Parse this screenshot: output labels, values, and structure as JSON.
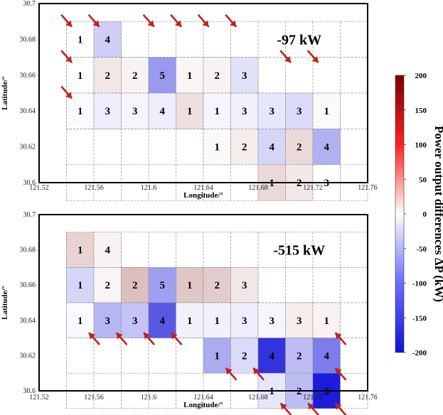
{
  "chart_data": {
    "type": "heatmap",
    "colorbar": {
      "label": "Power output differences ΔP (kW)",
      "range": [
        -200,
        200
      ],
      "ticks": [
        200,
        150,
        100,
        50,
        0,
        -50,
        -100,
        -150,
        -200
      ],
      "colors": {
        "neg": "#1010d8",
        "mid": "#ffffff",
        "pos": "#7a0000"
      }
    },
    "arrow_color": "#c0221d",
    "panels": [
      {
        "annotation": "-97 kW",
        "xlabel": "Longitude/°",
        "ylabel": "Latitude/°",
        "xlim": [
          121.52,
          121.76
        ],
        "ylim": [
          30.6,
          30.7
        ],
        "xticks": [
          "121.52",
          "121.56",
          "121.6",
          "121.64",
          "121.68",
          "121.72",
          "121.76"
        ],
        "yticks": [
          "30.7",
          "30.68",
          "30.66",
          "30.64",
          "30.62",
          "30.6"
        ],
        "cells": [
          {
            "lon": 121.55,
            "lat": 30.68,
            "label": "1",
            "dp": 0
          },
          {
            "lon": 121.57,
            "lat": 30.68,
            "label": "4",
            "dp": -40
          },
          {
            "lon": 121.55,
            "lat": 30.66,
            "label": "1",
            "dp": 0
          },
          {
            "lon": 121.57,
            "lat": 30.66,
            "label": "2",
            "dp": 20
          },
          {
            "lon": 121.59,
            "lat": 30.66,
            "label": "2",
            "dp": 10
          },
          {
            "lon": 121.61,
            "lat": 30.66,
            "label": "5",
            "dp": -85
          },
          {
            "lon": 121.63,
            "lat": 30.66,
            "label": "1",
            "dp": 8
          },
          {
            "lon": 121.65,
            "lat": 30.66,
            "label": "2",
            "dp": 10
          },
          {
            "lon": 121.67,
            "lat": 30.66,
            "label": "3",
            "dp": -25
          },
          {
            "lon": 121.55,
            "lat": 30.64,
            "label": "1",
            "dp": -3
          },
          {
            "lon": 121.57,
            "lat": 30.64,
            "label": "3",
            "dp": -15
          },
          {
            "lon": 121.59,
            "lat": 30.64,
            "label": "3",
            "dp": -8
          },
          {
            "lon": 121.61,
            "lat": 30.64,
            "label": "4",
            "dp": -15
          },
          {
            "lon": 121.63,
            "lat": 30.64,
            "label": "1",
            "dp": 25
          },
          {
            "lon": 121.65,
            "lat": 30.64,
            "label": "1",
            "dp": -8
          },
          {
            "lon": 121.67,
            "lat": 30.64,
            "label": "3",
            "dp": -12
          },
          {
            "lon": 121.69,
            "lat": 30.64,
            "label": "3",
            "dp": -20
          },
          {
            "lon": 121.71,
            "lat": 30.64,
            "label": "3",
            "dp": -30
          },
          {
            "lon": 121.73,
            "lat": 30.64,
            "label": "1",
            "dp": 5
          },
          {
            "lon": 121.65,
            "lat": 30.62,
            "label": "1",
            "dp": 5
          },
          {
            "lon": 121.67,
            "lat": 30.62,
            "label": "2",
            "dp": 15
          },
          {
            "lon": 121.69,
            "lat": 30.62,
            "label": "4",
            "dp": -35
          },
          {
            "lon": 121.71,
            "lat": 30.62,
            "label": "2",
            "dp": 30
          },
          {
            "lon": 121.73,
            "lat": 30.62,
            "label": "4",
            "dp": -65
          },
          {
            "lon": 121.69,
            "lat": 30.6,
            "label": "1",
            "dp": 30
          },
          {
            "lon": 121.71,
            "lat": 30.6,
            "label": "2",
            "dp": 18
          },
          {
            "lon": 121.73,
            "lat": 30.6,
            "label": "3",
            "dp": 0
          }
        ],
        "arrows_to": [
          {
            "lon": 121.55,
            "lat": 30.68
          },
          {
            "lon": 121.57,
            "lat": 30.68
          },
          {
            "lon": 121.55,
            "lat": 30.66
          },
          {
            "lon": 121.55,
            "lat": 30.64
          },
          {
            "lon": 121.61,
            "lat": 30.68
          },
          {
            "lon": 121.63,
            "lat": 30.68
          },
          {
            "lon": 121.65,
            "lat": 30.68
          },
          {
            "lon": 121.67,
            "lat": 30.68
          },
          {
            "lon": 121.71,
            "lat": 30.66
          },
          {
            "lon": 121.73,
            "lat": 30.66
          }
        ]
      },
      {
        "annotation": "-515 kW",
        "xlabel": "Longitude/°",
        "ylabel": "Latitude/°",
        "xlim": [
          121.52,
          121.76
        ],
        "ylim": [
          30.6,
          30.7
        ],
        "xticks": [
          "121.52",
          "121.56",
          "121.6",
          "121.64",
          "121.68",
          "121.72",
          "121.76"
        ],
        "yticks": [
          "30.7",
          "30.68",
          "30.66",
          "30.64",
          "30.62",
          "30.6"
        ],
        "cells": [
          {
            "lon": 121.55,
            "lat": 30.68,
            "label": "1",
            "dp": 35
          },
          {
            "lon": 121.57,
            "lat": 30.68,
            "label": "4",
            "dp": 10
          },
          {
            "lon": 121.55,
            "lat": 30.66,
            "label": "1",
            "dp": -35
          },
          {
            "lon": 121.57,
            "lat": 30.66,
            "label": "2",
            "dp": 8
          },
          {
            "lon": 121.59,
            "lat": 30.66,
            "label": "2",
            "dp": 50
          },
          {
            "lon": 121.61,
            "lat": 30.66,
            "label": "5",
            "dp": -80
          },
          {
            "lon": 121.63,
            "lat": 30.66,
            "label": "1",
            "dp": 45
          },
          {
            "lon": 121.65,
            "lat": 30.66,
            "label": "2",
            "dp": 40
          },
          {
            "lon": 121.67,
            "lat": 30.66,
            "label": "3",
            "dp": 20
          },
          {
            "lon": 121.55,
            "lat": 30.64,
            "label": "1",
            "dp": -5
          },
          {
            "lon": 121.57,
            "lat": 30.64,
            "label": "3",
            "dp": -60
          },
          {
            "lon": 121.59,
            "lat": 30.64,
            "label": "3",
            "dp": -50
          },
          {
            "lon": 121.61,
            "lat": 30.64,
            "label": "4",
            "dp": -140
          },
          {
            "lon": 121.63,
            "lat": 30.64,
            "label": "1",
            "dp": -12
          },
          {
            "lon": 121.65,
            "lat": 30.64,
            "label": "1",
            "dp": -12
          },
          {
            "lon": 121.67,
            "lat": 30.64,
            "label": "3",
            "dp": -15
          },
          {
            "lon": 121.69,
            "lat": 30.64,
            "label": "3",
            "dp": -8
          },
          {
            "lon": 121.71,
            "lat": 30.64,
            "label": "3",
            "dp": 15
          },
          {
            "lon": 121.73,
            "lat": 30.64,
            "label": "1",
            "dp": 10
          },
          {
            "lon": 121.65,
            "lat": 30.62,
            "label": "1",
            "dp": -70
          },
          {
            "lon": 121.67,
            "lat": 30.62,
            "label": "2",
            "dp": -30
          },
          {
            "lon": 121.69,
            "lat": 30.62,
            "label": "4",
            "dp": -170
          },
          {
            "lon": 121.71,
            "lat": 30.62,
            "label": "2",
            "dp": -55
          },
          {
            "lon": 121.73,
            "lat": 30.62,
            "label": "4",
            "dp": -110
          },
          {
            "lon": 121.69,
            "lat": 30.6,
            "label": "1",
            "dp": -20
          },
          {
            "lon": 121.71,
            "lat": 30.6,
            "label": "2",
            "dp": -55
          },
          {
            "lon": 121.73,
            "lat": 30.6,
            "label": "3",
            "dp": -190
          }
        ],
        "arrows_to": [
          {
            "lon": 121.55,
            "lat": 30.64
          },
          {
            "lon": 121.57,
            "lat": 30.64
          },
          {
            "lon": 121.59,
            "lat": 30.64
          },
          {
            "lon": 121.61,
            "lat": 30.64
          },
          {
            "lon": 121.65,
            "lat": 30.62
          },
          {
            "lon": 121.67,
            "lat": 30.62
          },
          {
            "lon": 121.69,
            "lat": 30.6
          },
          {
            "lon": 121.71,
            "lat": 30.6
          },
          {
            "lon": 121.73,
            "lat": 30.6
          },
          {
            "lon": 121.73,
            "lat": 30.64
          },
          {
            "lon": 121.73,
            "lat": 30.62
          }
        ]
      }
    ]
  }
}
